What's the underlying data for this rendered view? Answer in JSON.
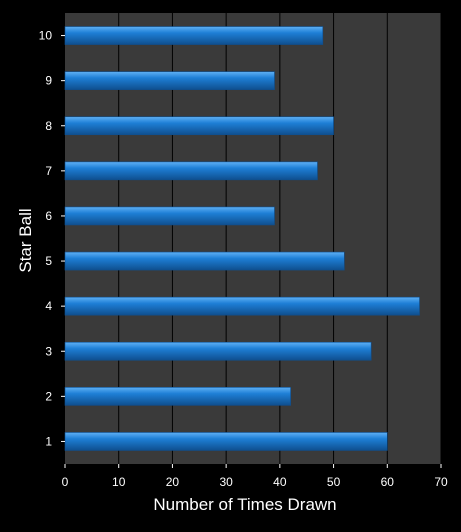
{
  "chart_data": {
    "type": "bar",
    "orientation": "horizontal",
    "title": "",
    "xlabel": "Number of Times Drawn",
    "ylabel": "Star Ball",
    "categories": [
      "1",
      "2",
      "3",
      "4",
      "5",
      "6",
      "7",
      "8",
      "9",
      "10"
    ],
    "values": [
      60,
      42,
      57,
      66,
      52,
      39,
      47,
      50,
      39,
      48
    ],
    "xlim": [
      0,
      70
    ],
    "xticks": [
      "0",
      "10",
      "20",
      "30",
      "40",
      "50",
      "60",
      "70"
    ],
    "grid": "vertical",
    "legend": "none",
    "colors": {
      "background": "#000000",
      "plot_area": "#3a3a3a",
      "gridline": "#000000",
      "bar_fill": "#1e7fd6",
      "bar_highlight": "#5fb0f5",
      "bar_shadow": "#0f4f8f",
      "text": "#ffffff"
    }
  }
}
